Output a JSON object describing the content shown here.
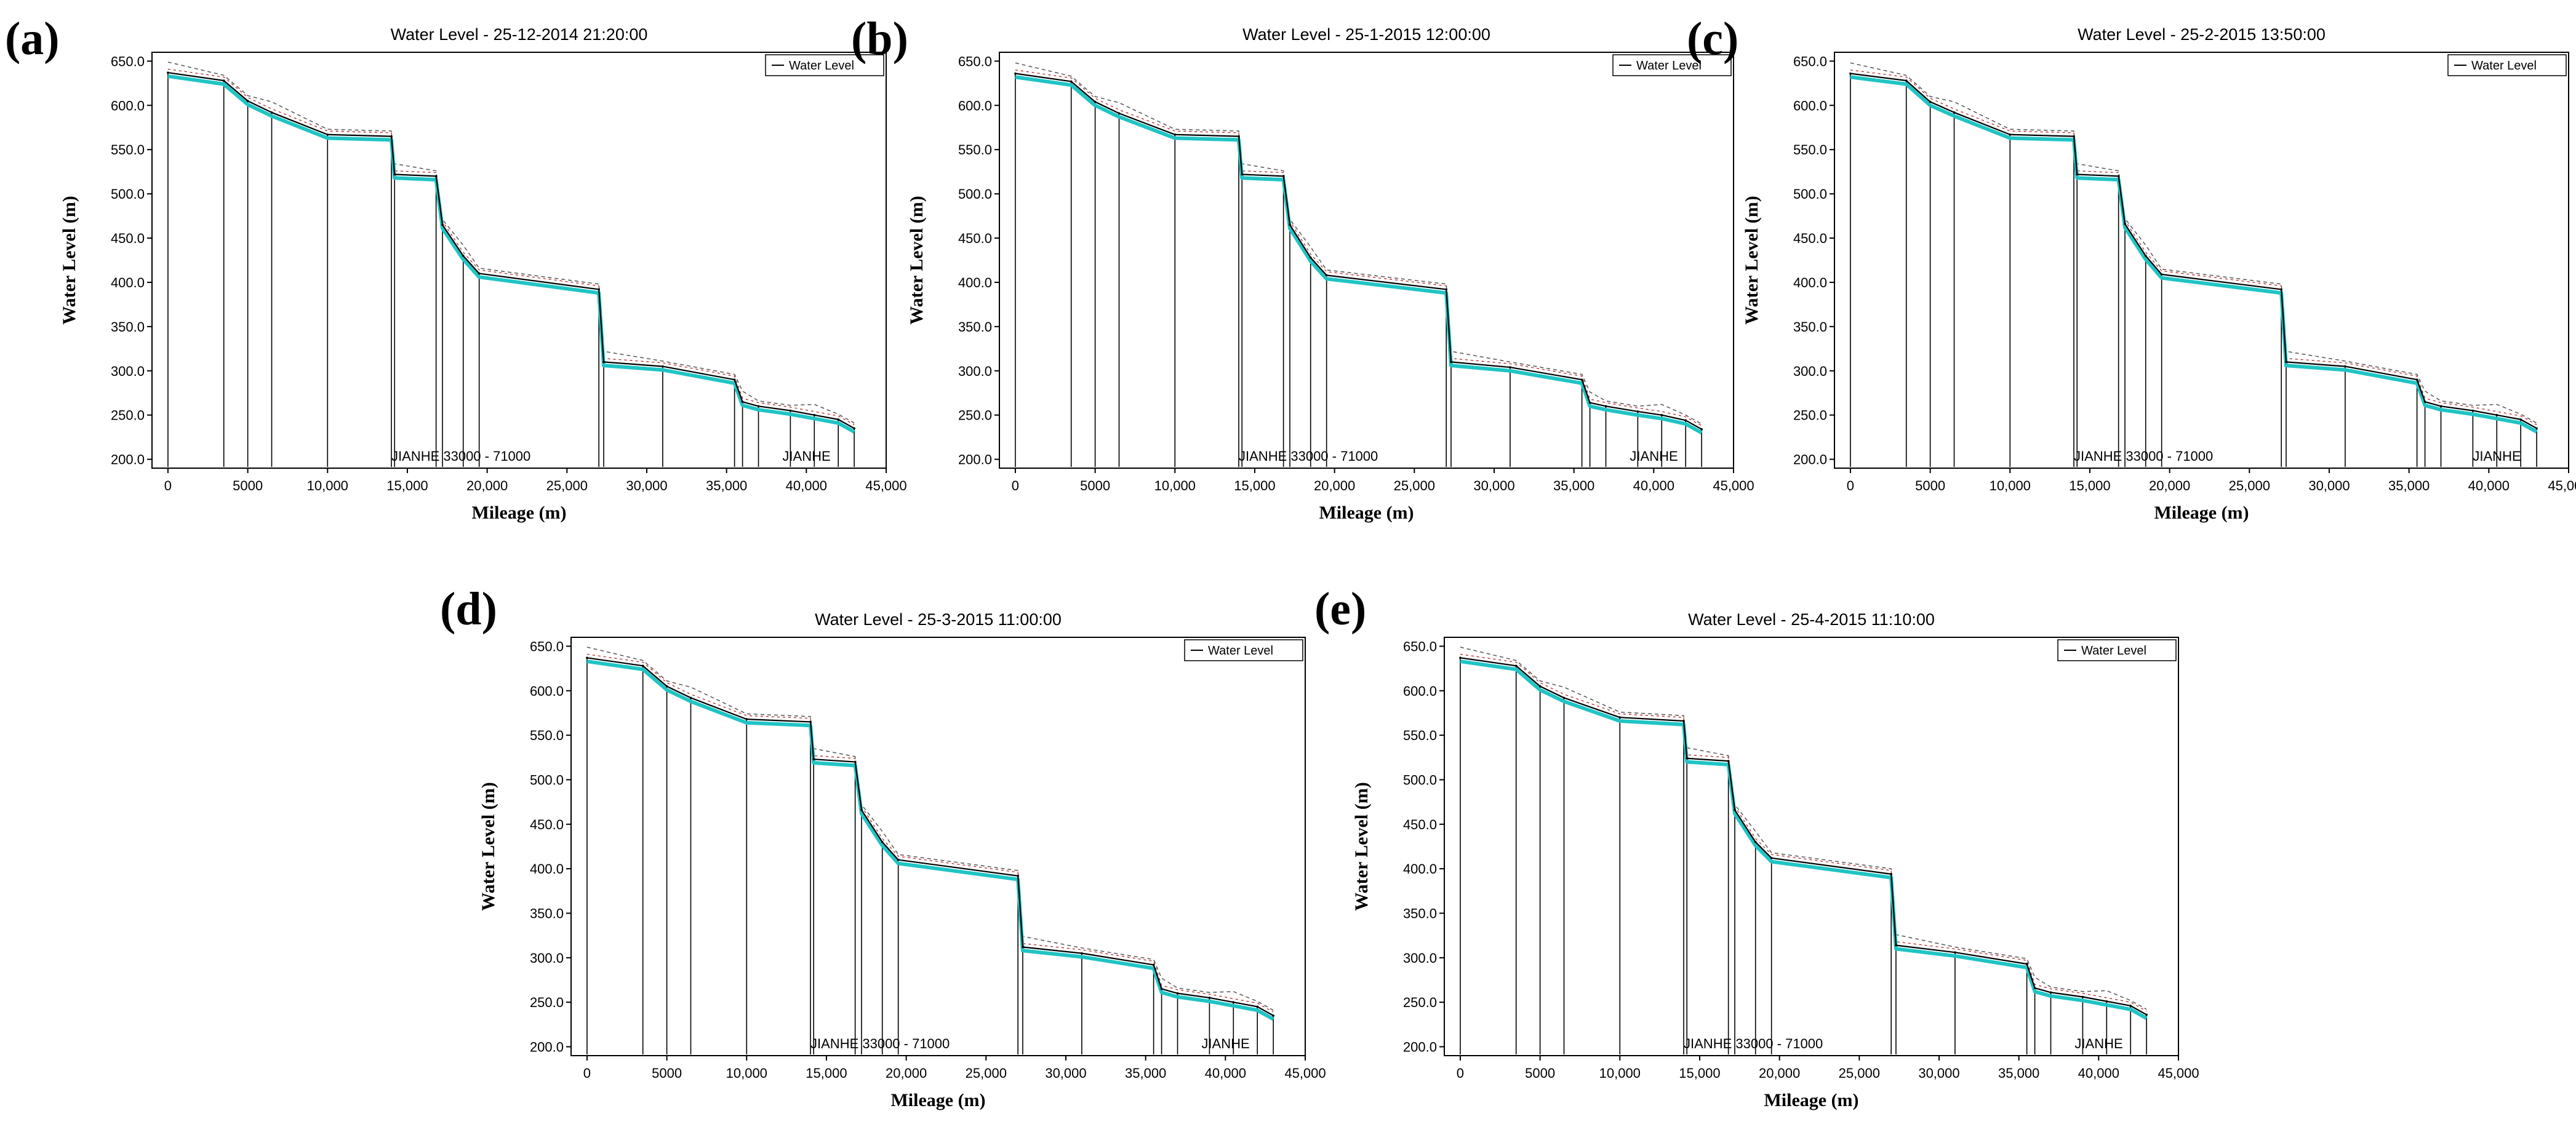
{
  "figure": {
    "panels": [
      {
        "letter": "(a)",
        "title": "Water Level - 25-12-2014 21:20:00"
      },
      {
        "letter": "(b)",
        "title": "Water Level - 25-1-2015 12:00:00"
      },
      {
        "letter": "(c)",
        "title": "Water Level - 25-2-2015 13:50:00"
      },
      {
        "letter": "(d)",
        "title": "Water Level - 25-3-2015 11:00:00"
      },
      {
        "letter": "(e)",
        "title": "Water Level - 25-4-2015 11:10:00"
      }
    ]
  },
  "chart_data": [
    {
      "type": "line",
      "panel": "(a)",
      "title": "Water Level - 25-12-2014 21:20:00",
      "xlabel": "Mileage (m)",
      "ylabel": "Water Level (m)",
      "xlim": [
        -1000,
        45000
      ],
      "ylim": [
        190,
        660
      ],
      "x_ticks": [
        0,
        5000,
        10000,
        15000,
        20000,
        25000,
        30000,
        35000,
        40000,
        45000
      ],
      "x_tick_labels": [
        "0",
        "5000",
        "10,000",
        "15,000",
        "20,000",
        "25,000",
        "30,000",
        "35,000",
        "40,000",
        "45,000"
      ],
      "y_ticks": [
        200,
        250,
        300,
        350,
        400,
        450,
        500,
        550,
        600,
        650
      ],
      "y_tick_labels": [
        "200.0",
        "250.0",
        "300.0",
        "350.0",
        "400.0",
        "450.0",
        "500.0",
        "550.0",
        "600.0",
        "650.0"
      ],
      "legend": {
        "entries": [
          "Water Level"
        ],
        "placement": "top-right"
      },
      "annotations": [
        {
          "text": "JIANHE  33000 - 71000",
          "x": 14000
        },
        {
          "text": "JIANHE",
          "x": 38500
        }
      ],
      "series": [
        {
          "name": "Water Level",
          "x": [
            0,
            3500,
            5000,
            6500,
            10000,
            14000,
            14200,
            16800,
            17200,
            18500,
            19500,
            27000,
            27300,
            31000,
            35500,
            36000,
            37000,
            39000,
            40500,
            42000,
            43000
          ],
          "values": [
            637,
            628,
            605,
            592,
            567,
            565,
            522,
            520,
            465,
            430,
            410,
            392,
            310,
            305,
            290,
            265,
            260,
            255,
            250,
            245,
            235
          ]
        }
      ]
    },
    {
      "type": "line",
      "panel": "(b)",
      "title": "Water Level - 25-1-2015 12:00:00",
      "xlabel": "Mileage (m)",
      "ylabel": "Water Level (m)",
      "xlim": [
        -1000,
        45000
      ],
      "ylim": [
        190,
        660
      ],
      "x_ticks": [
        0,
        5000,
        10000,
        15000,
        20000,
        25000,
        30000,
        35000,
        40000,
        45000
      ],
      "x_tick_labels": [
        "0",
        "5000",
        "10,000",
        "15,000",
        "20,000",
        "25,000",
        "30,000",
        "35,000",
        "40,000",
        "45,000"
      ],
      "y_ticks": [
        200,
        250,
        300,
        350,
        400,
        450,
        500,
        550,
        600,
        650
      ],
      "y_tick_labels": [
        "200.0",
        "250.0",
        "300.0",
        "350.0",
        "400.0",
        "450.0",
        "500.0",
        "550.0",
        "600.0",
        "650.0"
      ],
      "legend": {
        "entries": [
          "Water Level"
        ],
        "placement": "top-right"
      },
      "annotations": [
        {
          "text": "JIANHE  33000 - 71000",
          "x": 14000
        },
        {
          "text": "JIANHE",
          "x": 38500
        }
      ],
      "series": [
        {
          "name": "Water Level",
          "x": [
            0,
            3500,
            5000,
            6500,
            10000,
            14000,
            14200,
            16800,
            17200,
            18500,
            19500,
            27000,
            27300,
            31000,
            35500,
            36000,
            37000,
            39000,
            40500,
            42000,
            43000
          ],
          "values": [
            636,
            627,
            604,
            591,
            567,
            565,
            522,
            520,
            465,
            428,
            408,
            392,
            310,
            304,
            290,
            264,
            260,
            254,
            250,
            244,
            234
          ]
        }
      ]
    },
    {
      "type": "line",
      "panel": "(c)",
      "title": "Water Level - 25-2-2015 13:50:00",
      "xlabel": "Mileage (m)",
      "ylabel": "Water Level (m)",
      "xlim": [
        -1000,
        45000
      ],
      "ylim": [
        190,
        660
      ],
      "x_ticks": [
        0,
        5000,
        10000,
        15000,
        20000,
        25000,
        30000,
        35000,
        40000,
        45000
      ],
      "x_tick_labels": [
        "0",
        "5000",
        "10,000",
        "15,000",
        "20,000",
        "25,000",
        "30,000",
        "35,000",
        "40,000",
        "45,000"
      ],
      "y_ticks": [
        200,
        250,
        300,
        350,
        400,
        450,
        500,
        550,
        600,
        650
      ],
      "y_tick_labels": [
        "200.0",
        "250.0",
        "300.0",
        "350.0",
        "400.0",
        "450.0",
        "500.0",
        "550.0",
        "600.0",
        "650.0"
      ],
      "legend": {
        "entries": [
          "Water Level"
        ],
        "placement": "top-right"
      },
      "annotations": [
        {
          "text": "JIANHE  33000 - 71000",
          "x": 14000
        },
        {
          "text": "JIANHE",
          "x": 39000
        }
      ],
      "series": [
        {
          "name": "Water Level",
          "x": [
            0,
            3500,
            5000,
            6500,
            10000,
            14000,
            14200,
            16800,
            17200,
            18500,
            19500,
            27000,
            27300,
            31000,
            35500,
            36000,
            37000,
            39000,
            40500,
            42000,
            43000
          ],
          "values": [
            636,
            628,
            604,
            592,
            567,
            565,
            522,
            520,
            466,
            430,
            409,
            392,
            310,
            305,
            290,
            265,
            260,
            255,
            250,
            245,
            235
          ]
        }
      ]
    },
    {
      "type": "line",
      "panel": "(d)",
      "title": "Water Level - 25-3-2015 11:00:00",
      "xlabel": "Mileage (m)",
      "ylabel": "Water Level (m)",
      "xlim": [
        -1000,
        45000
      ],
      "ylim": [
        190,
        660
      ],
      "x_ticks": [
        0,
        5000,
        10000,
        15000,
        20000,
        25000,
        30000,
        35000,
        40000,
        45000
      ],
      "x_tick_labels": [
        "0",
        "5000",
        "10,000",
        "15,000",
        "20,000",
        "25,000",
        "30,000",
        "35,000",
        "40,000",
        "45,000"
      ],
      "y_ticks": [
        200,
        250,
        300,
        350,
        400,
        450,
        500,
        550,
        600,
        650
      ],
      "y_tick_labels": [
        "200.0",
        "250.0",
        "300.0",
        "350.0",
        "400.0",
        "450.0",
        "500.0",
        "550.0",
        "600.0",
        "650.0"
      ],
      "legend": {
        "entries": [
          "Water Level"
        ],
        "placement": "top-right"
      },
      "annotations": [
        {
          "text": "JIANHE  33000 - 71000",
          "x": 14000
        },
        {
          "text": "JIANHE",
          "x": 38500
        }
      ],
      "series": [
        {
          "name": "Water Level",
          "x": [
            0,
            3500,
            5000,
            6500,
            10000,
            14000,
            14200,
            16800,
            17200,
            18500,
            19500,
            27000,
            27300,
            31000,
            35500,
            36000,
            37000,
            39000,
            40500,
            42000,
            43000
          ],
          "values": [
            637,
            628,
            605,
            592,
            568,
            565,
            523,
            520,
            466,
            430,
            410,
            392,
            312,
            305,
            292,
            265,
            260,
            255,
            250,
            245,
            235
          ]
        }
      ]
    },
    {
      "type": "line",
      "panel": "(e)",
      "title": "Water Level - 25-4-2015 11:10:00",
      "xlabel": "Mileage (m)",
      "ylabel": "Water Level (m)",
      "xlim": [
        -1000,
        45000
      ],
      "ylim": [
        190,
        660
      ],
      "x_ticks": [
        0,
        5000,
        10000,
        15000,
        20000,
        25000,
        30000,
        35000,
        40000,
        45000
      ],
      "x_tick_labels": [
        "0",
        "5000",
        "10,000",
        "15,000",
        "20,000",
        "25,000",
        "30,000",
        "35,000",
        "40,000",
        "45,000"
      ],
      "y_ticks": [
        200,
        250,
        300,
        350,
        400,
        450,
        500,
        550,
        600,
        650
      ],
      "y_tick_labels": [
        "200.0",
        "250.0",
        "300.0",
        "350.0",
        "400.0",
        "450.0",
        "500.0",
        "550.0",
        "600.0",
        "650.0"
      ],
      "legend": {
        "entries": [
          "Water Level"
        ],
        "placement": "top-right"
      },
      "annotations": [
        {
          "text": "JIANHE  33000 - 71000",
          "x": 14000
        },
        {
          "text": "JIANHE",
          "x": 38500
        }
      ],
      "series": [
        {
          "name": "Water Level",
          "x": [
            0,
            3500,
            5000,
            6500,
            10000,
            14000,
            14200,
            16800,
            17200,
            18500,
            19500,
            27000,
            27300,
            31000,
            35500,
            36000,
            37000,
            39000,
            40500,
            42000,
            43000
          ],
          "values": [
            637,
            628,
            605,
            592,
            570,
            566,
            524,
            521,
            466,
            430,
            412,
            394,
            314,
            306,
            293,
            266,
            261,
            256,
            251,
            246,
            236
          ]
        }
      ]
    }
  ],
  "colors": {
    "frame": "#000000",
    "water_line": "#000000",
    "water_band": "#20c4c4",
    "dashed": "#555555",
    "red_dashed": "#c03030",
    "section_line": "#000000"
  }
}
